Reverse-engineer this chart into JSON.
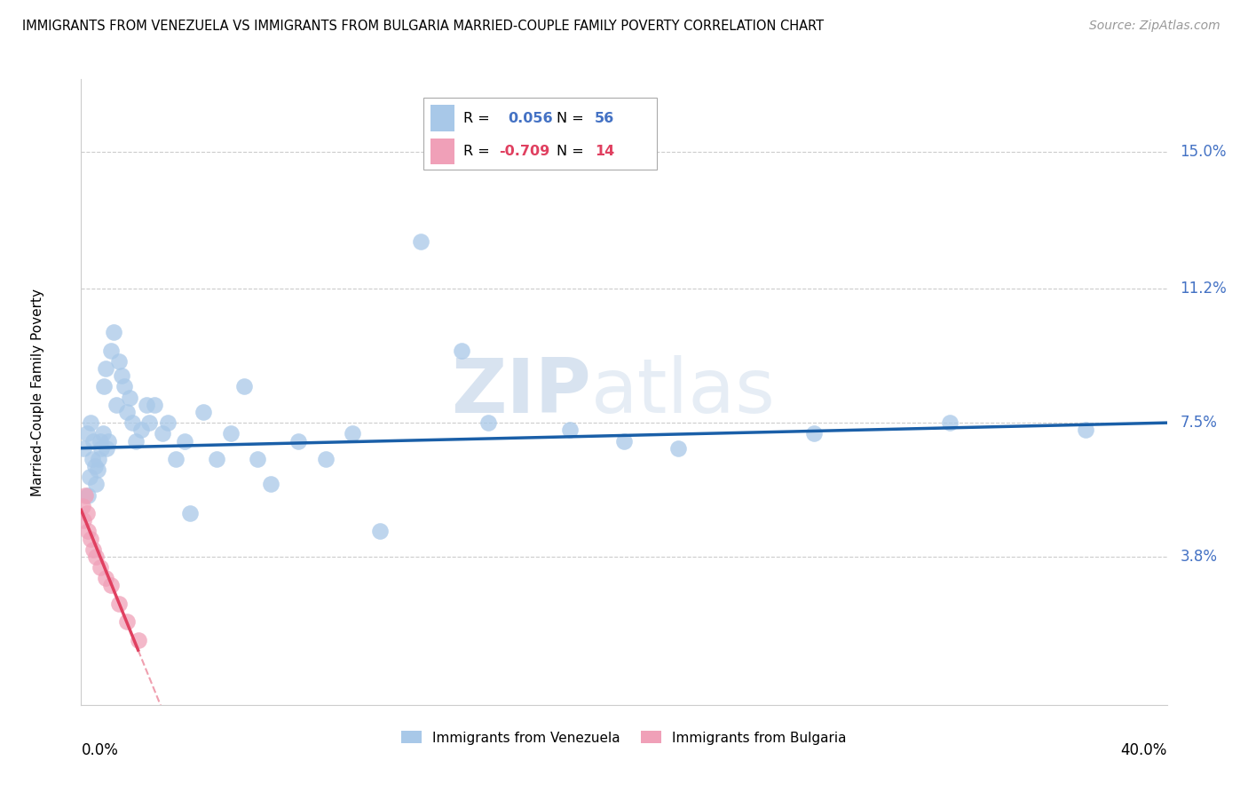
{
  "title": "IMMIGRANTS FROM VENEZUELA VS IMMIGRANTS FROM BULGARIA MARRIED-COUPLE FAMILY POVERTY CORRELATION CHART",
  "source": "Source: ZipAtlas.com",
  "ylabel": "Married-Couple Family Poverty",
  "xlim": [
    0.0,
    40.0
  ],
  "ylim": [
    -0.3,
    17.0
  ],
  "yticks": [
    3.8,
    7.5,
    11.2,
    15.0
  ],
  "ytick_labels": [
    "3.8%",
    "7.5%",
    "11.2%",
    "15.0%"
  ],
  "color_venezuela": "#a8c8e8",
  "color_bulgaria": "#f0a0b8",
  "line_color_venezuela": "#1a5fa8",
  "line_color_bulgaria": "#e04060",
  "r_venezuela": "0.056",
  "n_venezuela": "56",
  "r_bulgaria": "-0.709",
  "n_bulgaria": "14",
  "venezuela_x": [
    0.1,
    0.2,
    0.25,
    0.3,
    0.35,
    0.4,
    0.45,
    0.5,
    0.55,
    0.6,
    0.65,
    0.7,
    0.75,
    0.8,
    0.85,
    0.9,
    0.95,
    1.0,
    1.1,
    1.2,
    1.3,
    1.4,
    1.5,
    1.6,
    1.7,
    1.8,
    1.9,
    2.0,
    2.2,
    2.4,
    2.5,
    2.7,
    3.0,
    3.2,
    3.5,
    3.8,
    4.0,
    4.5,
    5.0,
    5.5,
    6.0,
    6.5,
    7.0,
    8.0,
    9.0,
    10.0,
    11.0,
    12.5,
    14.0,
    15.0,
    18.0,
    20.0,
    22.0,
    27.0,
    32.0,
    37.0
  ],
  "venezuela_y": [
    6.8,
    7.2,
    5.5,
    6.0,
    7.5,
    6.5,
    7.0,
    6.3,
    5.8,
    6.2,
    6.5,
    7.0,
    6.8,
    7.2,
    8.5,
    9.0,
    6.8,
    7.0,
    9.5,
    10.0,
    8.0,
    9.2,
    8.8,
    8.5,
    7.8,
    8.2,
    7.5,
    7.0,
    7.3,
    8.0,
    7.5,
    8.0,
    7.2,
    7.5,
    6.5,
    7.0,
    5.0,
    7.8,
    6.5,
    7.2,
    8.5,
    6.5,
    5.8,
    7.0,
    6.5,
    7.2,
    4.5,
    12.5,
    9.5,
    7.5,
    7.3,
    7.0,
    6.8,
    7.2,
    7.5,
    7.3
  ],
  "bulgaria_x": [
    0.05,
    0.1,
    0.15,
    0.2,
    0.25,
    0.35,
    0.45,
    0.55,
    0.7,
    0.9,
    1.1,
    1.4,
    1.7,
    2.1
  ],
  "bulgaria_y": [
    5.2,
    4.8,
    5.5,
    5.0,
    4.5,
    4.3,
    4.0,
    3.8,
    3.5,
    3.2,
    3.0,
    2.5,
    2.0,
    1.5
  ]
}
